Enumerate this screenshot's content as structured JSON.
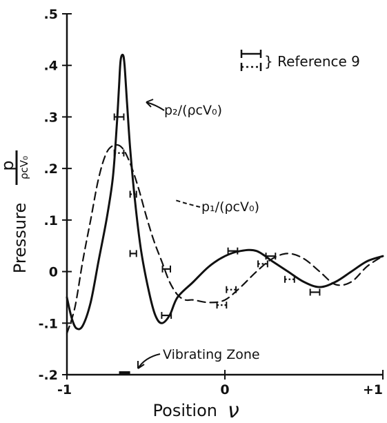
{
  "chart_data": {
    "type": "line",
    "title": "",
    "xlabel": "Position",
    "xlabel_symbol": "ν",
    "ylabel": "Pressure",
    "ylabel_fraction": {
      "numerator": "p",
      "denominator": "ρcV₀"
    },
    "xlim": [
      -1,
      1
    ],
    "ylim": [
      -0.2,
      0.5
    ],
    "x_ticks": [
      {
        "value": -1,
        "label": "-1"
      },
      {
        "value": 0,
        "label": "0"
      },
      {
        "value": 1,
        "label": "+1"
      }
    ],
    "y_ticks": [
      {
        "value": 0.5,
        "label": ".5"
      },
      {
        "value": 0.4,
        "label": ".4"
      },
      {
        "value": 0.3,
        "label": ".3"
      },
      {
        "value": 0.2,
        "label": ".2"
      },
      {
        "value": 0.1,
        "label": ".1"
      },
      {
        "value": 0.0,
        "label": "0"
      },
      {
        "value": -0.1,
        "label": "-.1"
      },
      {
        "value": -0.2,
        "label": "-.2"
      }
    ],
    "grid": false,
    "series": [
      {
        "name": "p₂/(ρcV₀)",
        "style": "solid",
        "points": [
          [
            -1.0,
            -0.05
          ],
          [
            -0.97,
            -0.09
          ],
          [
            -0.94,
            -0.11
          ],
          [
            -0.9,
            -0.105
          ],
          [
            -0.85,
            -0.06
          ],
          [
            -0.8,
            0.02
          ],
          [
            -0.75,
            0.1
          ],
          [
            -0.71,
            0.18
          ],
          [
            -0.685,
            0.28
          ],
          [
            -0.67,
            0.36
          ],
          [
            -0.66,
            0.41
          ],
          [
            -0.645,
            0.42
          ],
          [
            -0.635,
            0.4
          ],
          [
            -0.62,
            0.33
          ],
          [
            -0.6,
            0.24
          ],
          [
            -0.57,
            0.14
          ],
          [
            -0.53,
            0.04
          ],
          [
            -0.48,
            -0.04
          ],
          [
            -0.44,
            -0.085
          ],
          [
            -0.4,
            -0.1
          ],
          [
            -0.35,
            -0.085
          ],
          [
            -0.3,
            -0.05
          ],
          [
            -0.2,
            -0.02
          ],
          [
            -0.1,
            0.01
          ],
          [
            0.0,
            0.03
          ],
          [
            0.1,
            0.04
          ],
          [
            0.2,
            0.04
          ],
          [
            0.3,
            0.02
          ],
          [
            0.4,
            0.0
          ],
          [
            0.5,
            -0.02
          ],
          [
            0.6,
            -0.03
          ],
          [
            0.7,
            -0.02
          ],
          [
            0.8,
            0.0
          ],
          [
            0.9,
            0.02
          ],
          [
            1.0,
            0.03
          ]
        ]
      },
      {
        "name": "p₁/(ρcV₀)",
        "style": "dashed",
        "points": [
          [
            -1.0,
            -0.12
          ],
          [
            -0.95,
            -0.07
          ],
          [
            -0.9,
            0.02
          ],
          [
            -0.85,
            0.1
          ],
          [
            -0.8,
            0.18
          ],
          [
            -0.75,
            0.23
          ],
          [
            -0.7,
            0.245
          ],
          [
            -0.65,
            0.24
          ],
          [
            -0.6,
            0.21
          ],
          [
            -0.55,
            0.165
          ],
          [
            -0.5,
            0.11
          ],
          [
            -0.45,
            0.06
          ],
          [
            -0.4,
            0.02
          ],
          [
            -0.35,
            -0.02
          ],
          [
            -0.3,
            -0.045
          ],
          [
            -0.25,
            -0.055
          ],
          [
            -0.2,
            -0.055
          ],
          [
            -0.1,
            -0.06
          ],
          [
            0.0,
            -0.055
          ],
          [
            0.1,
            -0.03
          ],
          [
            0.2,
            0.0
          ],
          [
            0.3,
            0.025
          ],
          [
            0.4,
            0.035
          ],
          [
            0.5,
            0.025
          ],
          [
            0.6,
            0.0
          ],
          [
            0.7,
            -0.025
          ],
          [
            0.8,
            -0.02
          ],
          [
            0.9,
            0.01
          ],
          [
            1.0,
            0.03
          ]
        ]
      }
    ],
    "reference_points": [
      {
        "style": "solid",
        "x": -0.67,
        "y": 0.3,
        "half_width": 0.03
      },
      {
        "style": "dotted",
        "x": -0.67,
        "y": 0.23,
        "half_width": 0.03
      },
      {
        "style": "dotted",
        "x": -0.58,
        "y": 0.15,
        "half_width": 0.02
      },
      {
        "style": "solid",
        "x": -0.58,
        "y": 0.035,
        "half_width": 0.02
      },
      {
        "style": "solid",
        "x": -0.37,
        "y": 0.005,
        "half_width": 0.025
      },
      {
        "style": "solid",
        "x": -0.37,
        "y": -0.085,
        "half_width": 0.03
      },
      {
        "style": "dotted",
        "x": -0.02,
        "y": -0.065,
        "half_width": 0.03
      },
      {
        "style": "dotted",
        "x": 0.04,
        "y": -0.035,
        "half_width": 0.03
      },
      {
        "style": "solid",
        "x": 0.05,
        "y": 0.04,
        "half_width": 0.03
      },
      {
        "style": "dotted",
        "x": 0.24,
        "y": 0.015,
        "half_width": 0.03
      },
      {
        "style": "solid",
        "x": 0.29,
        "y": 0.03,
        "half_width": 0.03
      },
      {
        "style": "dotted",
        "x": 0.41,
        "y": -0.015,
        "half_width": 0.03
      },
      {
        "style": "solid",
        "x": 0.57,
        "y": -0.04,
        "half_width": 0.03
      }
    ],
    "annotations": {
      "p2_label": "p₂/(ρcV₀)",
      "p1_label": "p₁/(ρcV₀)",
      "legend_label": "} Reference 9",
      "vibrating_zone_label": "Vibrating Zone",
      "vibrating_zone_range": [
        -0.67,
        -0.6
      ]
    },
    "legend_position": "top-right"
  }
}
